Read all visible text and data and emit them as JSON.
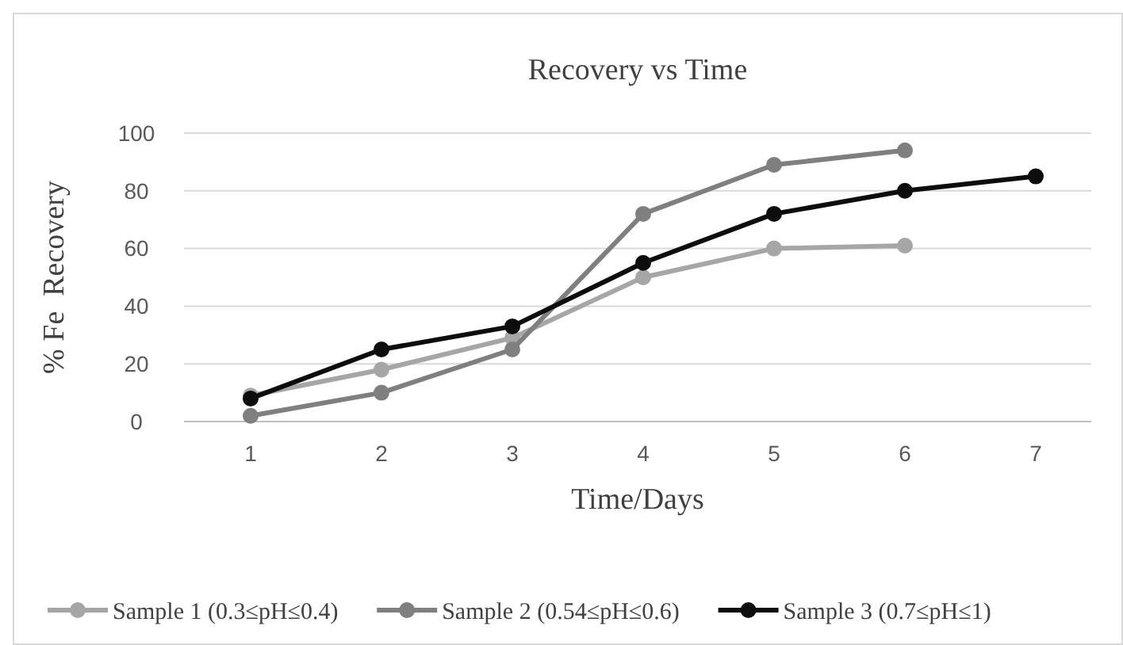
{
  "chart_data": {
    "type": "line",
    "title": "Recovery vs Time",
    "xlabel": "Time/Days",
    "ylabel": "% Fe  Recovery",
    "categories": [
      "1",
      "2",
      "3",
      "4",
      "5",
      "6",
      "7"
    ],
    "series": [
      {
        "name": "Sample 1 (0.3≤pH≤0.4)",
        "color": "#a6a6a6",
        "values": [
          9,
          18,
          29,
          50,
          60,
          61,
          null
        ]
      },
      {
        "name": "Sample 2 (0.54≤pH≤0.6)",
        "color": "#7f7f7f",
        "values": [
          2,
          10,
          25,
          72,
          89,
          94,
          null
        ]
      },
      {
        "name": "Sample 3 (0.7≤pH≤1)",
        "color": "#0d0d0d",
        "values": [
          8,
          25,
          33,
          55,
          72,
          80,
          85
        ]
      }
    ],
    "ylim": [
      0,
      100
    ],
    "yticks": [
      0,
      20,
      40,
      60,
      80,
      100
    ],
    "grid": "y",
    "legend": "bottom",
    "marker": "circle",
    "line_style": "solid"
  }
}
